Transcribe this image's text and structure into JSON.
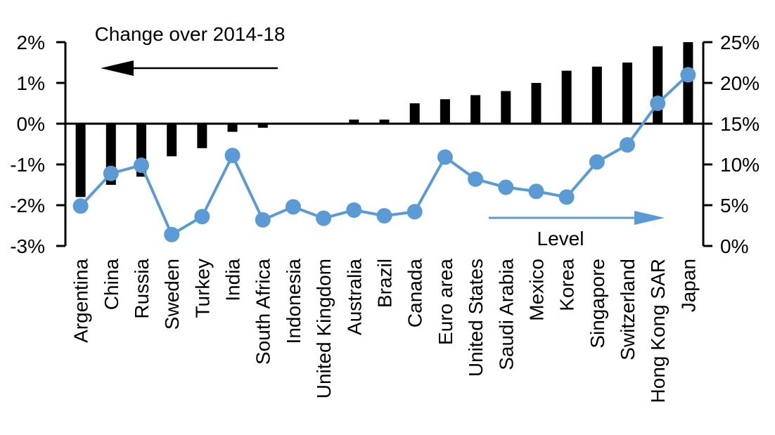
{
  "background_color": "#ffffff",
  "chart_data": {
    "type": "combo-bar-line",
    "categories": [
      "Argentina",
      "China",
      "Russia",
      "Sweden",
      "Turkey",
      "India",
      "South Africa",
      "Indonesia",
      "United Kingdom",
      "Australia",
      "Brazil",
      "Canada",
      "Euro area",
      "United States",
      "Saudi Arabia",
      "Mexico",
      "Korea",
      "Singapore",
      "Switzerland",
      "Hong Kong SAR",
      "Japan"
    ],
    "series": [
      {
        "name": "Change over 2014-18",
        "type": "bar",
        "axis": "left",
        "color": "#000000",
        "values": [
          -1.8,
          -1.5,
          -1.3,
          -0.8,
          -0.6,
          -0.2,
          -0.1,
          0,
          0,
          0.1,
          0.1,
          0.5,
          0.6,
          0.7,
          0.8,
          1.0,
          1.3,
          1.4,
          1.5,
          1.9,
          2.0
        ]
      },
      {
        "name": "Level",
        "type": "line",
        "axis": "right",
        "color": "#5B9BD5",
        "values": [
          4.9,
          8.9,
          9.9,
          1.4,
          3.6,
          11.1,
          3.2,
          4.8,
          3.4,
          4.4,
          3.7,
          4.2,
          10.9,
          8.2,
          7.2,
          6.7,
          6.0,
          10.3,
          12.4,
          17.5,
          21.0
        ]
      }
    ],
    "left_axis": {
      "min": -3,
      "max": 2,
      "step": 1,
      "tick_labels": [
        "2%",
        "1%",
        "0%",
        "-1%",
        "-2%",
        "-3%"
      ]
    },
    "right_axis": {
      "min": 0,
      "max": 25,
      "step": 5,
      "tick_labels": [
        "25%",
        "20%",
        "15%",
        "10%",
        "5%",
        "0%"
      ]
    },
    "grid": false,
    "annotations": [
      {
        "text": "Change over 2014-18",
        "arrow_direction": "left",
        "text_color": "#000000",
        "arrow_color": "#000000"
      },
      {
        "text": "Level",
        "arrow_direction": "right",
        "text_color": "#000000",
        "arrow_color": "#5B9BD5"
      }
    ]
  }
}
